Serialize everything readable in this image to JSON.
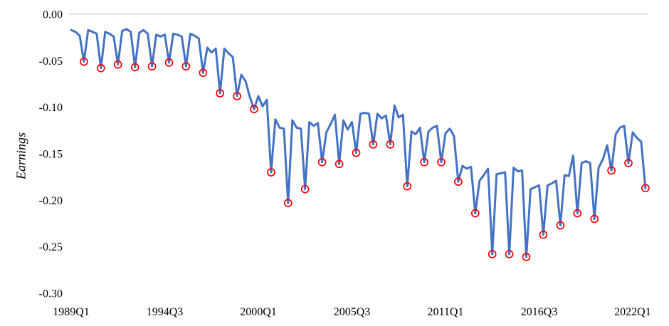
{
  "chart_data": {
    "type": "line",
    "title": "",
    "ylabel": "Earnings",
    "xlabel": "",
    "x_start": "1989Q1",
    "x_end": "2022Q4",
    "frequency": "quarterly",
    "x_tick_labels": [
      "1989Q1",
      "1994Q3",
      "2000Q1",
      "2005Q3",
      "2011Q1",
      "2016Q3",
      "2022Q1"
    ],
    "x_tick_indices": [
      0,
      22,
      44,
      66,
      88,
      110,
      132
    ],
    "y_tick_labels": [
      "0.00",
      "-0.05",
      "-0.10",
      "-0.15",
      "-0.20",
      "-0.25",
      "-0.30"
    ],
    "y_tick_values": [
      0,
      -0.05,
      -0.1,
      -0.15,
      -0.2,
      -0.25,
      -0.3
    ],
    "ylim": [
      -0.3,
      0.0
    ],
    "grid": "zero-line-only",
    "legend": "none",
    "colors": {
      "line": "#4472C4",
      "marker": "#FF0000",
      "zero_line": "#D9D9D9",
      "text": "#000000"
    },
    "series": [
      {
        "name": "Earnings",
        "color": "#4472C4",
        "values": [
          -0.017,
          -0.019,
          -0.023,
          -0.051,
          -0.017,
          -0.019,
          -0.021,
          -0.058,
          -0.019,
          -0.021,
          -0.024,
          -0.054,
          -0.018,
          -0.016,
          -0.019,
          -0.057,
          -0.02,
          -0.017,
          -0.021,
          -0.056,
          -0.022,
          -0.024,
          -0.022,
          -0.052,
          -0.021,
          -0.022,
          -0.024,
          -0.056,
          -0.021,
          -0.023,
          -0.026,
          -0.063,
          -0.036,
          -0.041,
          -0.037,
          -0.085,
          -0.037,
          -0.042,
          -0.046,
          -0.088,
          -0.065,
          -0.072,
          -0.089,
          -0.102,
          -0.088,
          -0.099,
          -0.092,
          -0.17,
          -0.113,
          -0.122,
          -0.123,
          -0.203,
          -0.114,
          -0.122,
          -0.123,
          -0.188,
          -0.116,
          -0.12,
          -0.117,
          -0.159,
          -0.127,
          -0.118,
          -0.108,
          -0.161,
          -0.114,
          -0.124,
          -0.116,
          -0.149,
          -0.107,
          -0.106,
          -0.107,
          -0.14,
          -0.107,
          -0.112,
          -0.109,
          -0.14,
          -0.098,
          -0.111,
          -0.108,
          -0.185,
          -0.126,
          -0.129,
          -0.122,
          -0.159,
          -0.126,
          -0.122,
          -0.12,
          -0.159,
          -0.128,
          -0.123,
          -0.131,
          -0.18,
          -0.163,
          -0.166,
          -0.164,
          -0.214,
          -0.179,
          -0.173,
          -0.166,
          -0.258,
          -0.172,
          -0.171,
          -0.17,
          -0.258,
          -0.165,
          -0.169,
          -0.168,
          -0.261,
          -0.188,
          -0.186,
          -0.184,
          -0.237,
          -0.184,
          -0.182,
          -0.179,
          -0.227,
          -0.173,
          -0.174,
          -0.152,
          -0.214,
          -0.16,
          -0.158,
          -0.16,
          -0.22,
          -0.165,
          -0.156,
          -0.141,
          -0.168,
          -0.129,
          -0.122,
          -0.12,
          -0.16,
          -0.127,
          -0.133,
          -0.137,
          -0.187
        ]
      }
    ],
    "markers": {
      "style": "open-circle",
      "color": "#FF0000",
      "on": "Q4 observations (annual seasonal troughs)",
      "indices": [
        3,
        7,
        11,
        15,
        19,
        23,
        27,
        31,
        35,
        39,
        43,
        47,
        51,
        55,
        59,
        63,
        67,
        71,
        75,
        79,
        83,
        87,
        91,
        95,
        99,
        103,
        107,
        111,
        115,
        119,
        123,
        127,
        131,
        135
      ]
    }
  }
}
